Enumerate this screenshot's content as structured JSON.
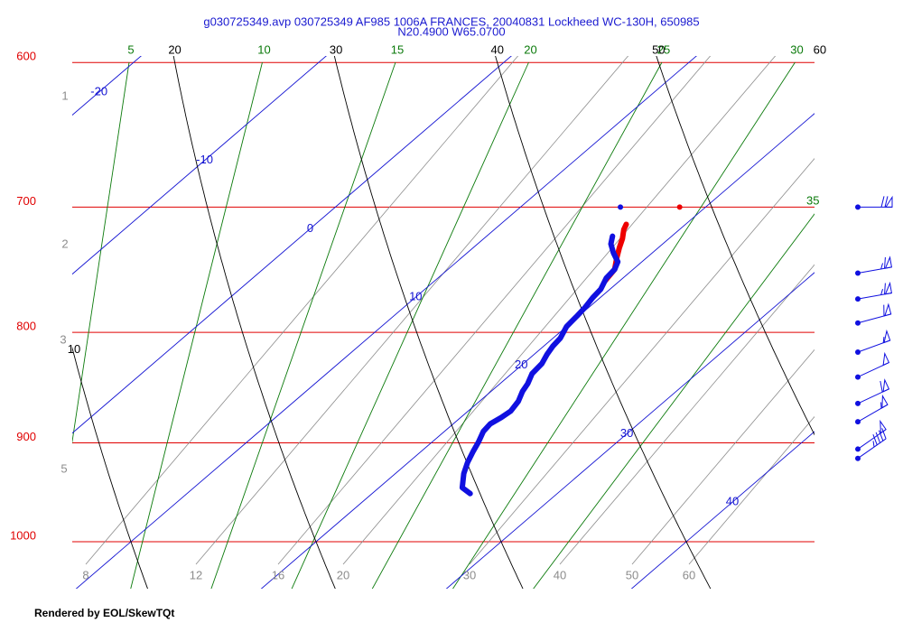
{
  "chart_data": {
    "type": "skewt",
    "title": "g030725349.avp 030725349 AF985 1006A FRANCES, 20040831 Lockheed WC-130H, 650985",
    "subtitle": "N20.4900 W65.0700",
    "footer": "Rendered by EOL/SkewTQt",
    "isobars": {
      "color": "#e00000",
      "ticks": [
        600,
        700,
        800,
        900,
        1000
      ]
    },
    "isotherms": {
      "color": "#1414d2",
      "ticks": [
        -20,
        -10,
        0,
        10,
        20,
        30,
        40
      ]
    },
    "dry_adiabats": {
      "color": "#000000",
      "ticks": [
        10,
        20,
        30,
        40,
        50,
        60
      ]
    },
    "moist_adiabats": {
      "color": "#0b7a0b",
      "ticks": [
        5,
        10,
        15,
        20,
        25,
        30,
        35
      ]
    },
    "mixing_ratio": {
      "color": "#8c8c8c",
      "ticks": [
        8,
        12,
        16,
        20,
        30,
        40,
        50,
        60
      ]
    },
    "height_labels": [
      1,
      2,
      3,
      5
    ],
    "series": [
      {
        "color": "#ee0000",
        "pressure": [
          757,
          748,
          739,
          731,
          724,
          717,
          713
        ],
        "values": [
          19.2,
          19.0,
          18.4,
          17.9,
          17.5,
          17.0,
          16.8
        ]
      },
      {
        "color": "#1010e0",
        "pressure": [
          950,
          944,
          930,
          919,
          908,
          899,
          889,
          882,
          876,
          870,
          861,
          852,
          845,
          836,
          827,
          819,
          812,
          805,
          795,
          786,
          779,
          771,
          764,
          755,
          748,
          742,
          735,
          728,
          722
        ],
        "values": [
          25.3,
          24.5,
          23.7,
          23.2,
          22.8,
          22.5,
          22.1,
          22.0,
          22.2,
          22.3,
          22.1,
          21.7,
          21.5,
          21.1,
          21.0,
          20.7,
          20.5,
          20.4,
          20.0,
          19.9,
          19.8,
          19.6,
          19.5,
          19.1,
          19.0,
          18.7,
          17.9,
          17.2,
          16.8
        ]
      }
    ],
    "flight_level": {
      "pressure": 700,
      "temperature": 18.6,
      "dewpoint": 15.4
    },
    "winds": {
      "color": "#1010e0",
      "pressure": [
        700,
        751,
        772,
        792,
        817,
        839,
        863,
        880,
        906,
        915
      ],
      "speed": [
        70,
        65,
        65,
        60,
        55,
        50,
        60,
        55,
        50,
        45
      ],
      "direction": [
        90,
        80,
        80,
        75,
        70,
        65,
        65,
        60,
        55,
        55
      ]
    }
  }
}
